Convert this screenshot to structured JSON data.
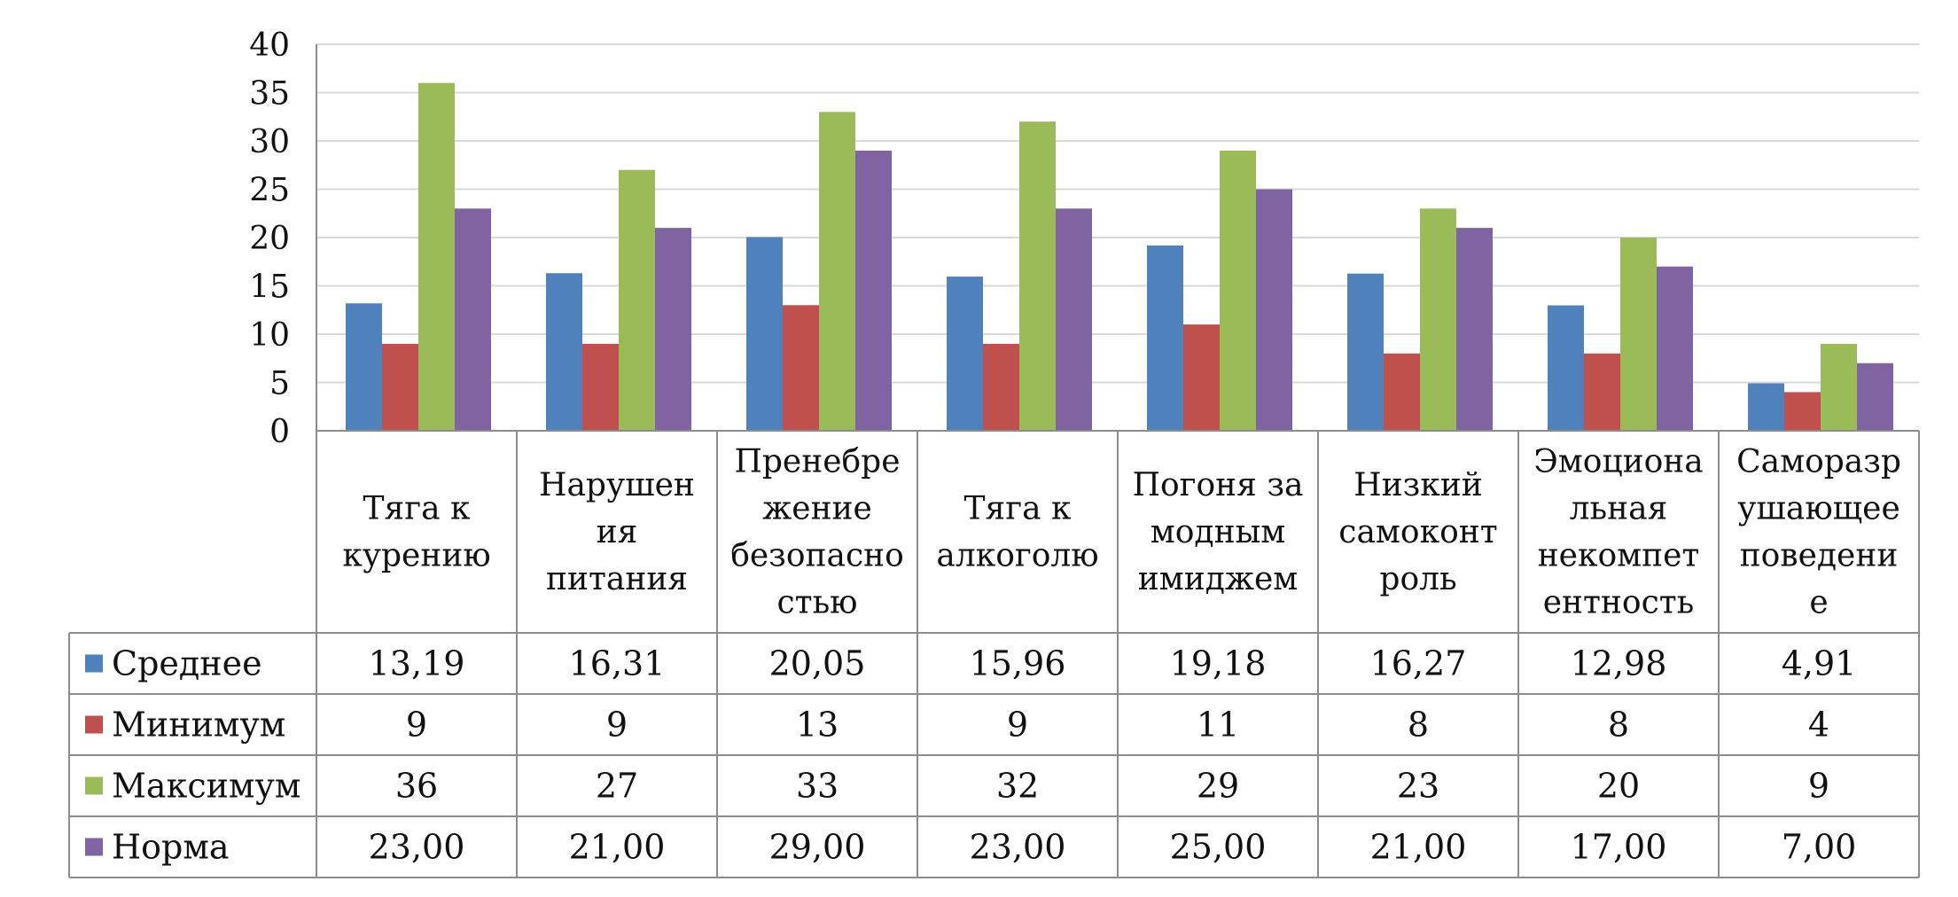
{
  "chart_data": {
    "type": "bar",
    "title": "",
    "xlabel": "",
    "ylabel": "",
    "ylim": [
      0,
      40
    ],
    "yticks": [
      0,
      5,
      10,
      15,
      20,
      25,
      30,
      35,
      40
    ],
    "grid": true,
    "legend": "data-table",
    "categories": [
      [
        "Тяга к",
        "курению"
      ],
      [
        "Нарушен",
        "ия",
        "питания"
      ],
      [
        "Пренебре",
        "жение",
        "безопасно",
        "стью"
      ],
      [
        "Тяга к",
        "алкоголю"
      ],
      [
        "Погоня за",
        "модным",
        "имиджем"
      ],
      [
        "Низкий",
        "самоконт",
        "роль"
      ],
      [
        "Эмоциона",
        "льная",
        "некомпет",
        "ентность"
      ],
      [
        "Саморазр",
        "ушающее",
        "поведени",
        "е"
      ]
    ],
    "series": [
      {
        "name": "Среднее",
        "color": "#4F81BD",
        "values": [
          13.19,
          16.31,
          20.05,
          15.96,
          19.18,
          16.27,
          12.98,
          4.91
        ],
        "labels": [
          "13,19",
          "16,31",
          "20,05",
          "15,96",
          "19,18",
          "16,27",
          "12,98",
          "4,91"
        ]
      },
      {
        "name": "Минимум",
        "color": "#C0504D",
        "values": [
          9,
          9,
          13,
          9,
          11,
          8,
          8,
          4
        ],
        "labels": [
          "9",
          "9",
          "13",
          "9",
          "11",
          "8",
          "8",
          "4"
        ]
      },
      {
        "name": "Максимум",
        "color": "#9BBB59",
        "values": [
          36,
          27,
          33,
          32,
          29,
          23,
          20,
          9
        ],
        "labels": [
          "36",
          "27",
          "33",
          "32",
          "29",
          "23",
          "20",
          "9"
        ]
      },
      {
        "name": "Норма",
        "color": "#8064A2",
        "values": [
          23,
          21,
          29,
          23,
          25,
          21,
          17,
          7
        ],
        "labels": [
          "23,00",
          "21,00",
          "29,00",
          "23,00",
          "25,00",
          "21,00",
          "17,00",
          "7,00"
        ]
      }
    ]
  }
}
